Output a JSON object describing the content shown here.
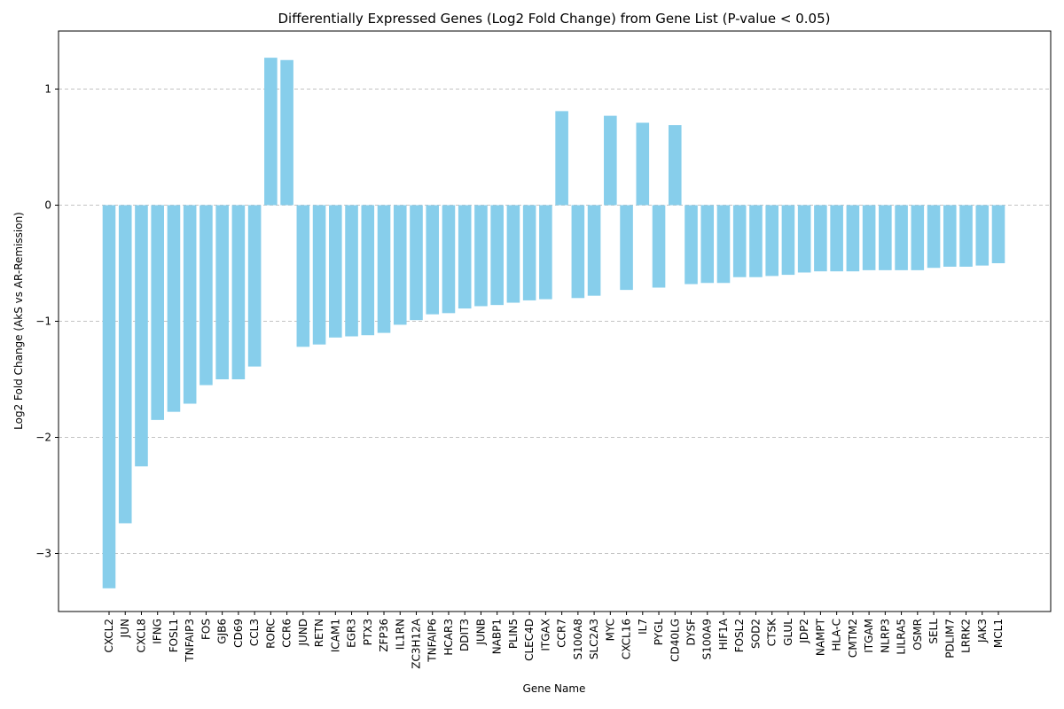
{
  "chart_data": {
    "type": "bar",
    "title": "Differentially Expressed Genes (Log2 Fold Change) from Gene List (P-value < 0.05)",
    "xlabel": "Gene Name",
    "ylabel": "Log2 Fold Change (AkS vs AR-Remission)",
    "ylim": [
      -3.5,
      1.5
    ],
    "yticks": [
      -3,
      -2,
      -1,
      0,
      1
    ],
    "ytick_labels": [
      "−3",
      "−2",
      "−1",
      "0",
      "1"
    ],
    "grid": "y-dashed",
    "bar_color": "#87CEEB",
    "categories": [
      "CXCL2",
      "JUN",
      "CXCL8",
      "IFNG",
      "FOSL1",
      "TNFAIP3",
      "FOS",
      "GJB6",
      "CD69",
      "CCL3",
      "RORC",
      "CCR6",
      "JUND",
      "RETN",
      "ICAM1",
      "EGR3",
      "PTX3",
      "ZFP36",
      "IL1RN",
      "ZC3H12A",
      "TNFAIP6",
      "HCAR3",
      "DDIT3",
      "JUNB",
      "NABP1",
      "PLIN5",
      "CLEC4D",
      "ITGAX",
      "CCR7",
      "S100A8",
      "SLC2A3",
      "MYC",
      "CXCL16",
      "IL7",
      "PYGL",
      "CD40LG",
      "DYSF",
      "S100A9",
      "HIF1A",
      "FOSL2",
      "SOD2",
      "CTSK",
      "GLUL",
      "JDP2",
      "NAMPT",
      "HLA-C",
      "CMTM2",
      "ITGAM",
      "NLRP3",
      "LILRA5",
      "OSMR",
      "SELL",
      "PDLIM7",
      "LRRK2",
      "JAK3",
      "MCL1"
    ],
    "values": [
      -3.3,
      -2.74,
      -2.25,
      -1.85,
      -1.78,
      -1.71,
      -1.55,
      -1.5,
      -1.5,
      -1.39,
      1.27,
      1.25,
      -1.22,
      -1.2,
      -1.14,
      -1.13,
      -1.12,
      -1.1,
      -1.03,
      -0.99,
      -0.94,
      -0.93,
      -0.89,
      -0.87,
      -0.86,
      -0.84,
      -0.82,
      -0.81,
      0.81,
      -0.8,
      -0.78,
      0.77,
      -0.73,
      0.71,
      -0.71,
      0.69,
      -0.68,
      -0.67,
      -0.67,
      -0.62,
      -0.62,
      -0.61,
      -0.6,
      -0.58,
      -0.57,
      -0.57,
      -0.57,
      -0.56,
      -0.56,
      -0.56,
      -0.56,
      -0.54,
      -0.53,
      -0.53,
      -0.52,
      -0.5
    ]
  }
}
